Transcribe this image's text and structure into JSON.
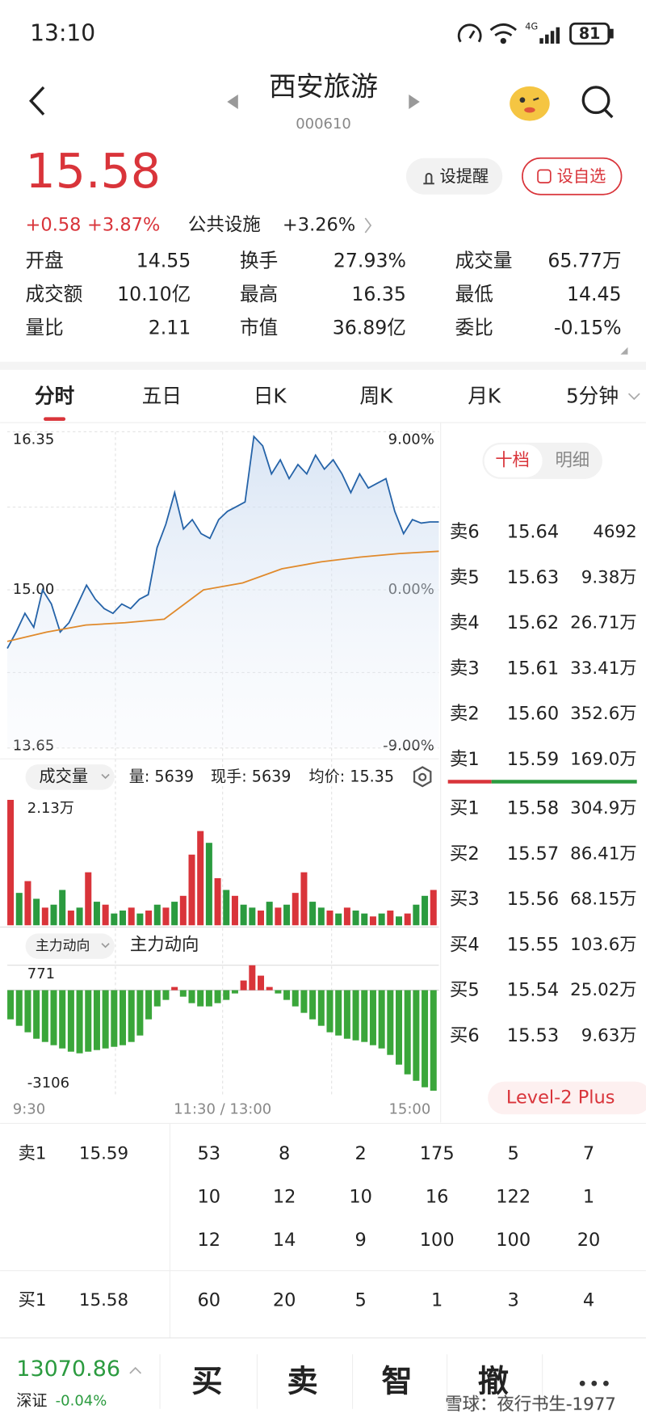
{
  "status": {
    "time": "13:10",
    "battery": "81"
  },
  "header": {
    "title": "西安旅游",
    "code": "000610"
  },
  "quote": {
    "price": "15.58",
    "change": "+0.58",
    "change_pct": "+3.87%",
    "sector": "公共设施",
    "sector_pct": "+3.26%",
    "alert_button": "设提醒",
    "watch_button": "设自选"
  },
  "stats": [
    {
      "label": "开盘",
      "value": "14.55",
      "color": "#2b9b3f"
    },
    {
      "label": "换手",
      "value": "27.93%",
      "color": "#222222"
    },
    {
      "label": "成交量",
      "value": "65.77万",
      "color": "#222222"
    },
    {
      "label": "成交额",
      "value": "10.10亿",
      "color": "#222222"
    },
    {
      "label": "最高",
      "value": "16.35",
      "color": "#d9343a"
    },
    {
      "label": "最低",
      "value": "14.45",
      "color": "#2b9b3f"
    },
    {
      "label": "量比",
      "value": "2.11",
      "color": "#222222"
    },
    {
      "label": "市值",
      "value": "36.89亿",
      "color": "#222222"
    },
    {
      "label": "委比",
      "value": "-0.15%",
      "color": "#2b9b3f"
    }
  ],
  "tabs": [
    "分时",
    "五日",
    "日K",
    "周K",
    "月K",
    "5分钟"
  ],
  "intraday": {
    "type": "line",
    "ylim": [
      13.65,
      16.35
    ],
    "yticks": [
      16.35,
      {
        "value": 15,
        "label": "15.00"
      },
      13.65
    ],
    "y2lim": [
      -9,
      9
    ],
    "y2ticks": [
      {
        "value": 9,
        "label": "9.00%"
      },
      {
        "value": 0,
        "label": "0.00%"
      },
      {
        "value": -9,
        "label": "-9.00%"
      }
    ],
    "series": [
      {
        "color": "#2563a8",
        "values": [
          14.5,
          14.64,
          14.8,
          14.68,
          15.0,
          14.88,
          14.64,
          14.72,
          14.88,
          15.04,
          14.92,
          14.84,
          14.8,
          14.88,
          14.84,
          14.92,
          14.96,
          15.36,
          15.56,
          15.83,
          15.52,
          15.6,
          15.48,
          15.44,
          15.6,
          15.67,
          15.71,
          15.75,
          16.31,
          16.23,
          15.99,
          16.11,
          15.95,
          16.07,
          15.99,
          16.15,
          16.03,
          16.11,
          15.99,
          15.83,
          15.99,
          15.87,
          15.91,
          15.95,
          15.67,
          15.48,
          15.6,
          15.57,
          15.58,
          15.58
        ]
      },
      {
        "color": "#e08a2c",
        "values": [
          14.56,
          14.64,
          14.7,
          14.72,
          14.75,
          15.0,
          15.06,
          15.18,
          15.24,
          15.28,
          15.31,
          15.33
        ]
      }
    ]
  },
  "volume": {
    "type": "bar",
    "label": "成交量",
    "info": [
      "量: 5639",
      "现手: 5639",
      "均价: 15.35"
    ],
    "ylim": [
      0,
      2.13
    ],
    "yticks": [
      {
        "value": 2.13,
        "label": "2.13万"
      }
    ],
    "values": [
      2.13,
      0.55,
      0.75,
      0.45,
      0.3,
      0.35,
      0.6,
      0.25,
      0.3,
      0.9,
      0.4,
      0.35,
      0.2,
      0.25,
      0.3,
      0.2,
      0.25,
      0.35,
      0.3,
      0.4,
      0.5,
      1.2,
      1.6,
      1.4,
      0.8,
      0.6,
      0.5,
      0.35,
      0.3,
      0.25,
      0.4,
      0.3,
      0.35,
      0.55,
      0.9,
      0.4,
      0.3,
      0.25,
      0.2,
      0.3,
      0.25,
      0.2,
      0.15,
      0.2,
      0.25,
      0.15,
      0.2,
      0.35,
      0.5,
      0.6
    ],
    "colors": [
      "#d9343a",
      "#2b9b3f",
      "#d9343a",
      "#2b9b3f",
      "#d9343a",
      "#2b9b3f",
      "#2b9b3f",
      "#d9343a",
      "#2b9b3f",
      "#d9343a",
      "#2b9b3f",
      "#d9343a",
      "#2b9b3f",
      "#2b9b3f",
      "#d9343a",
      "#2b9b3f",
      "#d9343a",
      "#2b9b3f",
      "#d9343a",
      "#2b9b3f",
      "#d9343a",
      "#d9343a",
      "#d9343a",
      "#2b9b3f",
      "#d9343a",
      "#2b9b3f",
      "#d9343a",
      "#2b9b3f",
      "#2b9b3f",
      "#d9343a",
      "#2b9b3f",
      "#d9343a",
      "#2b9b3f",
      "#d9343a",
      "#d9343a",
      "#2b9b3f",
      "#2b9b3f",
      "#d9343a",
      "#2b9b3f",
      "#d9343a",
      "#2b9b3f",
      "#2b9b3f",
      "#d9343a",
      "#2b9b3f",
      "#d9343a",
      "#2b9b3f",
      "#d9343a",
      "#2b9b3f",
      "#2b9b3f",
      "#d9343a"
    ]
  },
  "flow": {
    "type": "bar",
    "selector": "主力动向",
    "label": "主力动向",
    "ylim": [
      -3106,
      771
    ],
    "yticks": [
      771,
      -3106
    ],
    "up_color": "#d9343a",
    "down_color": "#3aa63a",
    "values": [
      -900,
      -1100,
      -1300,
      -1500,
      -1600,
      -1700,
      -1800,
      -1900,
      -1950,
      -1900,
      -1850,
      -1800,
      -1750,
      -1700,
      -1600,
      -1400,
      -900,
      -500,
      -300,
      100,
      -200,
      -400,
      -500,
      -500,
      -400,
      -300,
      -100,
      300,
      771,
      450,
      100,
      -100,
      -300,
      -500,
      -700,
      -900,
      -1100,
      -1300,
      -1400,
      -1500,
      -1550,
      -1600,
      -1700,
      -1800,
      -2000,
      -2300,
      -2600,
      -2800,
      -3000,
      -3106
    ]
  },
  "x_labels": [
    "9:30",
    "11:30 / 13:00",
    "15:00"
  ],
  "book": {
    "tabs": [
      "十档",
      "明细"
    ],
    "asks": [
      {
        "label": "卖6",
        "price": "15.64",
        "volume": "4692"
      },
      {
        "label": "卖5",
        "price": "15.63",
        "volume": "9.38万"
      },
      {
        "label": "卖4",
        "price": "15.62",
        "volume": "26.71万"
      },
      {
        "label": "卖3",
        "price": "15.61",
        "volume": "33.41万"
      },
      {
        "label": "卖2",
        "price": "15.60",
        "volume": "352.6万"
      },
      {
        "label": "卖1",
        "price": "15.59",
        "volume": "169.0万"
      }
    ],
    "bids": [
      {
        "label": "买1",
        "price": "15.58",
        "volume": "304.9万"
      },
      {
        "label": "买2",
        "price": "15.57",
        "volume": "86.41万"
      },
      {
        "label": "买3",
        "price": "15.56",
        "volume": "68.15万"
      },
      {
        "label": "买4",
        "price": "15.55",
        "volume": "103.6万"
      },
      {
        "label": "买5",
        "price": "15.54",
        "volume": "25.02万"
      },
      {
        "label": "买6",
        "price": "15.53",
        "volume": "9.63万"
      }
    ],
    "level2": "Level-2 Plus"
  },
  "ticks": {
    "ask": {
      "label": "卖1",
      "price": "15.59",
      "rows": [
        [
          53,
          8,
          2,
          175,
          5,
          7
        ],
        [
          10,
          12,
          10,
          16,
          122,
          1
        ],
        [
          12,
          14,
          9,
          100,
          100,
          20
        ]
      ]
    },
    "bid": {
      "label": "买1",
      "price": "15.58",
      "rows": [
        [
          60,
          20,
          5,
          1,
          3,
          4
        ]
      ]
    }
  },
  "footer": {
    "index": "13070.86",
    "index_name": "深证",
    "index_pct": "-0.04%",
    "buttons": [
      "买",
      "卖",
      "智",
      "撤"
    ],
    "watermark": "雪球：夜行书生-1977"
  }
}
